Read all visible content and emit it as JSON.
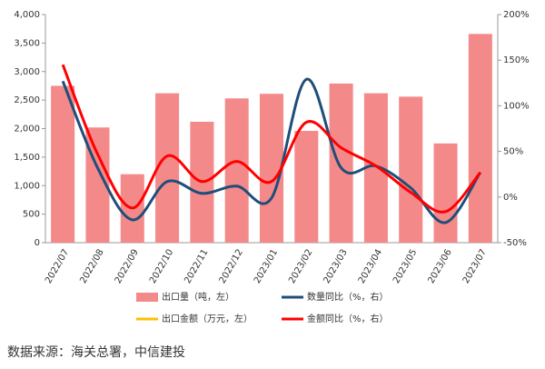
{
  "chart_data": {
    "type": "bar_line",
    "categories": [
      "2022/07",
      "2022/08",
      "2022/09",
      "2022/10",
      "2022/11",
      "2022/12",
      "2023/01",
      "2023/02",
      "2023/03",
      "2023/04",
      "2023/05",
      "2023/06",
      "2023/07"
    ],
    "series": [
      {
        "name": "出口量（吨，左）",
        "type": "bar",
        "color": "#f4898a",
        "values": [
          2750,
          2020,
          1200,
          2620,
          2120,
          2530,
          2610,
          1960,
          2790,
          2620,
          2560,
          1740,
          3660
        ]
      },
      {
        "name": "数量同比（%，右）",
        "type": "line",
        "axis": "y2",
        "color": "#1f4e79",
        "values": [
          127,
          32,
          -25,
          17,
          4,
          12,
          -1,
          129,
          32,
          34,
          10,
          -28,
          27
        ]
      },
      {
        "name": "出口金额（万元，左）",
        "type": "line",
        "color": "#ffc000",
        "values": [
          null,
          null,
          null,
          null,
          null,
          null,
          null,
          null,
          null,
          null,
          null,
          null,
          null
        ]
      },
      {
        "name": "金额同比（%，右）",
        "type": "line",
        "axis": "y2",
        "color": "#ff0000",
        "values": [
          145,
          47,
          -12,
          45,
          17,
          39,
          17,
          82,
          54,
          34,
          5,
          -16,
          27
        ]
      }
    ],
    "ylim": [
      0,
      4000
    ],
    "yticks": [
      0,
      500,
      {
        "value": 1000,
        "label": "1,000"
      },
      {
        "value": 1500,
        "label": "1,500"
      },
      {
        "value": 2000,
        "label": "2,000"
      },
      {
        "value": 2500,
        "label": "2,500"
      },
      {
        "value": 3000,
        "label": "3,000"
      },
      {
        "value": 3500,
        "label": "3,500"
      },
      {
        "value": 4000,
        "label": "4,000"
      }
    ],
    "y2lim": [
      -50,
      200
    ],
    "y2ticks": [
      {
        "value": -50,
        "label": "-50%"
      },
      {
        "value": 0,
        "label": "0%"
      },
      {
        "value": 50,
        "label": "50%"
      },
      {
        "value": 100,
        "label": "100%"
      },
      {
        "value": 150,
        "label": "150%"
      },
      {
        "value": 200,
        "label": "200%"
      }
    ],
    "source": "数据来源：海关总署，中信建投"
  }
}
